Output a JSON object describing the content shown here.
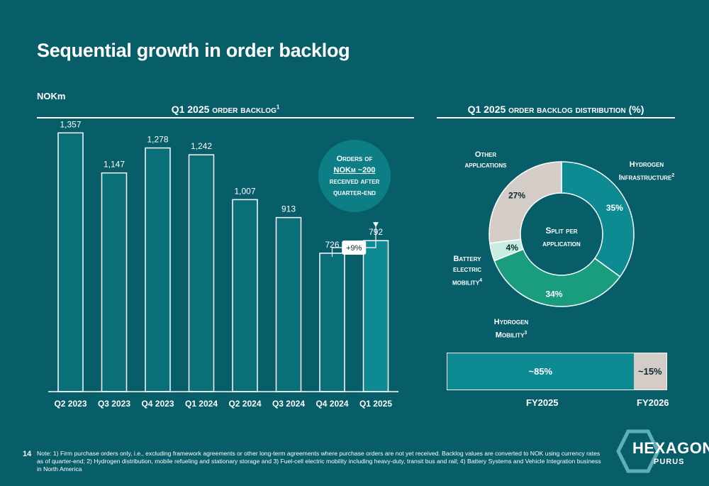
{
  "page": {
    "title": "Sequential growth in order backlog",
    "unit": "NOKm",
    "page_number": "14",
    "note": "Note: 1) Firm purchase orders only, i.e., excluding framework agreements or other long-term agreements where purchase orders are not yet received. Backlog values are converted to NOK using currency rates as of quarter-end; 2) Hydrogen distribution, mobile refueling and stationary storage and 3) Fuel-cell electric mobility including heavy-duty, transit bus and rail; 4) Battery Systems and Vehicle Integration business in North America"
  },
  "bar_section": {
    "title": "Q1 2025 order backlog",
    "title_sup": "1",
    "bubble_line1": "Orders of",
    "bubble_line2": "NOKm ~200",
    "bubble_line3": "received after",
    "bubble_line4": "quarter-end",
    "growth_label": "+9%"
  },
  "donut_section": {
    "title": "Q1 2025 order backlog distribution (%)",
    "center_line1": "Split per",
    "center_line2": "application",
    "labels": {
      "hydrogen_infra_1": "Hydrogen",
      "hydrogen_infra_2": "Infrastructure",
      "hydrogen_infra_sup": "2",
      "hydrogen_mob_1": "Hydrogen",
      "hydrogen_mob_2": "Mobility",
      "hydrogen_mob_sup": "3",
      "battery_1": "Battery",
      "battery_2": "electric",
      "battery_3": "mobility",
      "battery_sup": "4",
      "other_1": "Other",
      "other_2": "applications"
    }
  },
  "stack_section": {
    "fy2025_value": "~85%",
    "fy2026_value": "~15%",
    "fy2025_label": "FY2025",
    "fy2026_label": "FY2026"
  },
  "logo": {
    "name": "HEXAGON",
    "sub": "PURUS"
  },
  "colors": {
    "background": "#075d68",
    "bar_fill": "#0a6f79",
    "bar_highlight": "#0d8a92",
    "hydrogen_infrastructure": "#0d8a92",
    "hydrogen_mobility": "#1a9d7e",
    "battery_electric": "#c9ece2",
    "other": "#d4ccc6"
  },
  "chart_data": [
    {
      "type": "bar",
      "categories": [
        "Q2 2023",
        "Q3 2023",
        "Q4 2023",
        "Q1 2024",
        "Q2 2024",
        "Q3 2024",
        "Q4 2024",
        "Q1 2025"
      ],
      "values": [
        1357,
        1147,
        1278,
        1242,
        1007,
        913,
        726,
        792
      ],
      "value_labels": [
        "1,357",
        "1,147",
        "1,278",
        "1,242",
        "1,007",
        "913",
        "726",
        "792"
      ],
      "title": "Q1 2025 order backlog",
      "ylim": [
        0,
        1600
      ],
      "grid": false
    },
    {
      "type": "pie",
      "title": "Q1 2025 order backlog distribution (%)",
      "labels": [
        "Hydrogen Infrastructure",
        "Hydrogen Mobility",
        "Battery electric mobility",
        "Other applications"
      ],
      "values": [
        35,
        34,
        4,
        27
      ],
      "value_labels": [
        "35%",
        "34%",
        "4%",
        "27%"
      ]
    },
    {
      "type": "bar",
      "categories": [
        "FY2025",
        "FY2026"
      ],
      "values": [
        85,
        15
      ],
      "stacked": true
    }
  ]
}
